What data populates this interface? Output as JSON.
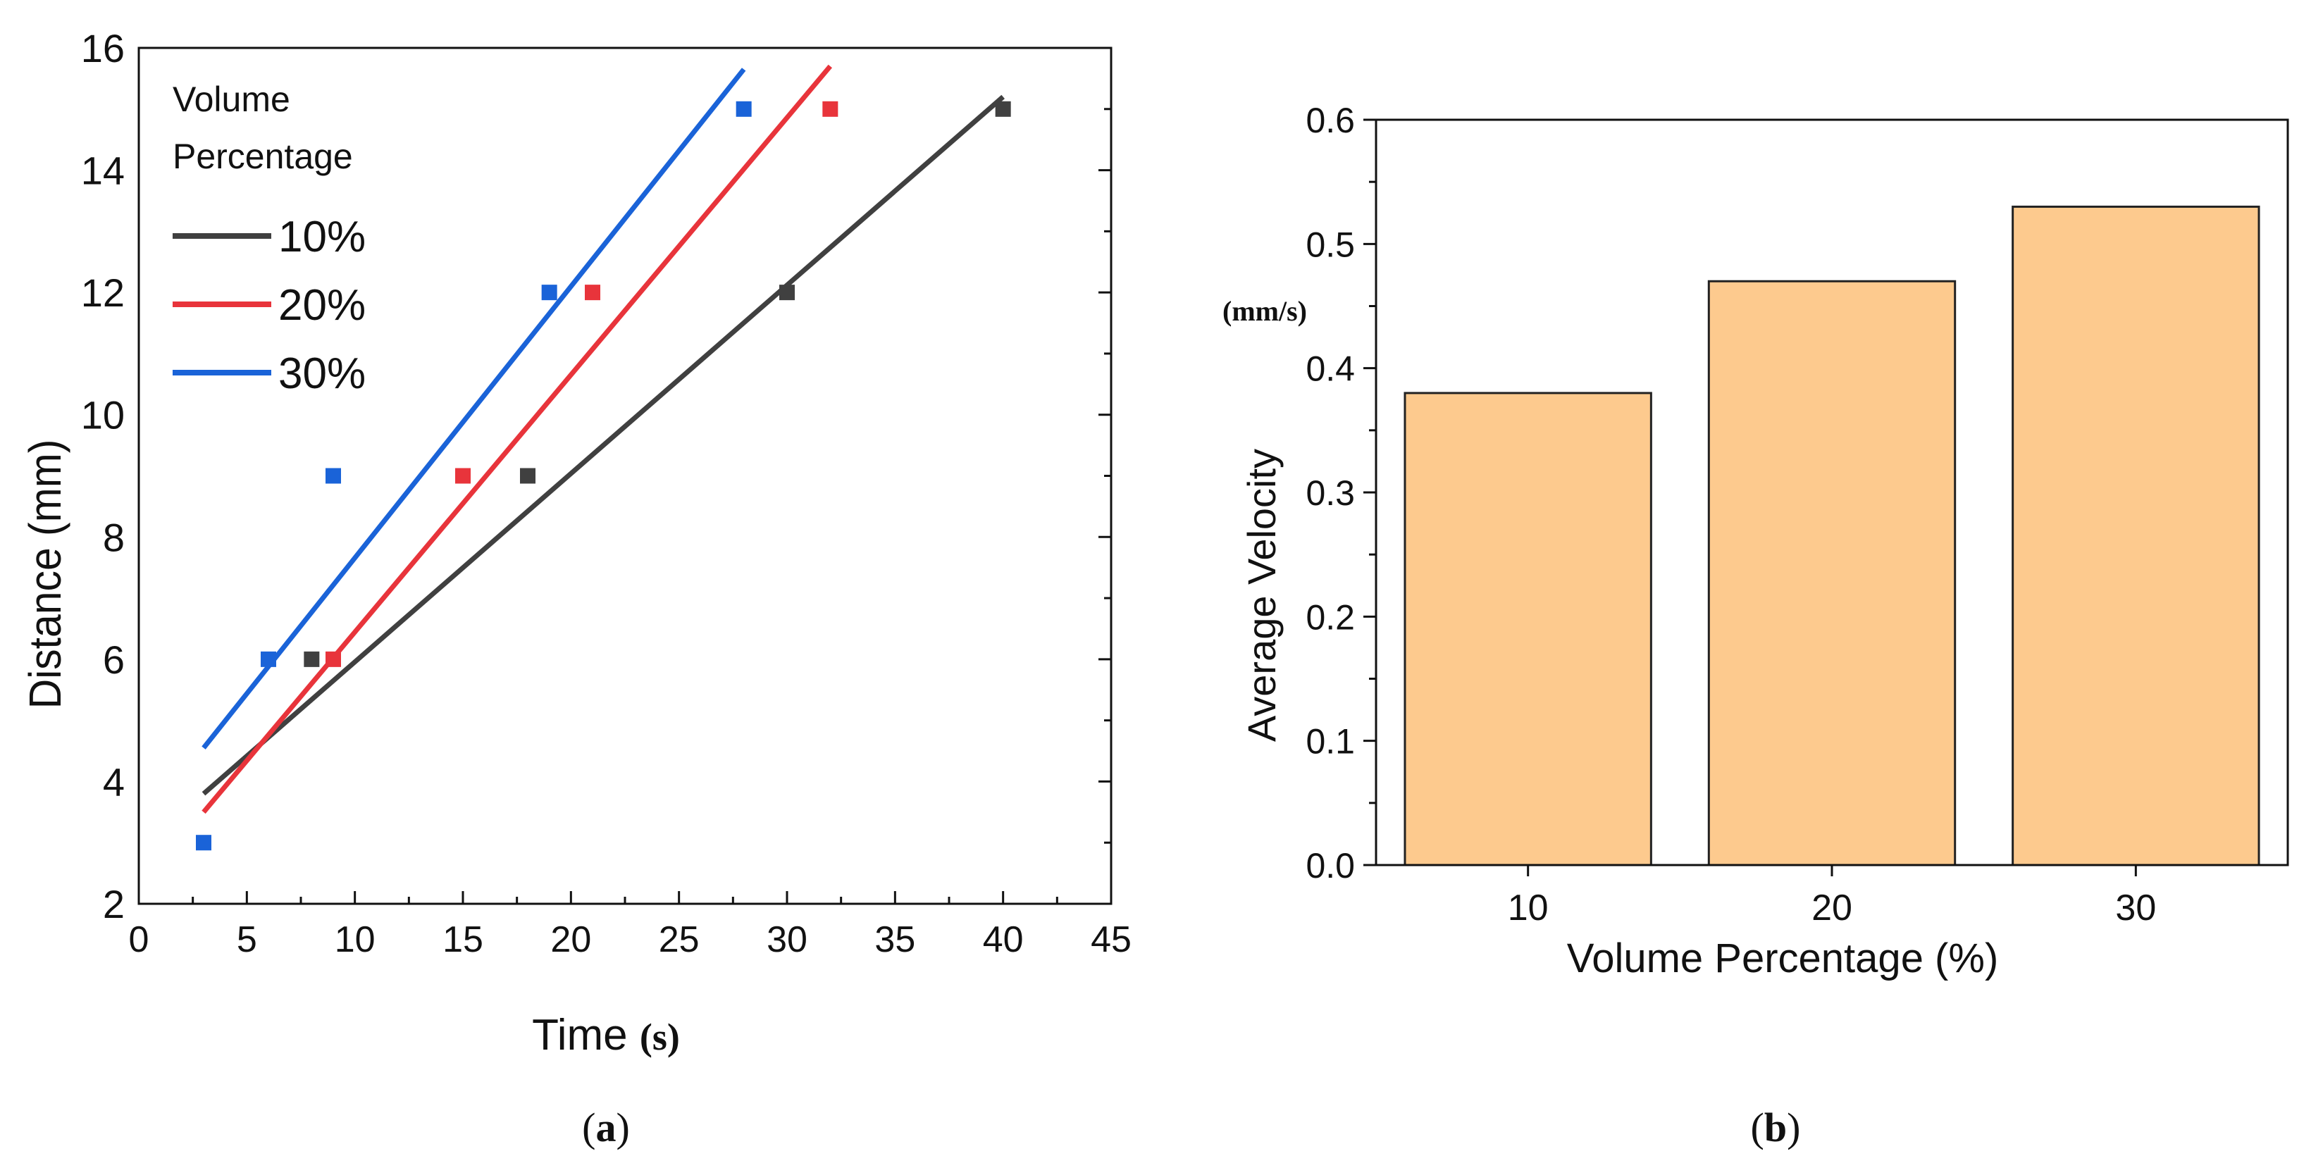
{
  "chart_data": [
    {
      "type": "scatter",
      "panel": "a",
      "caption_open": "(",
      "caption_letter": "a",
      "caption_close": ")",
      "xlabel": "Time",
      "xlabel_unit": "(s)",
      "ylabel": "Distance (mm)",
      "xlim": [
        0,
        45
      ],
      "ylim": [
        2,
        16
      ],
      "xticks": [
        "0",
        "5",
        "10",
        "15",
        "20",
        "25",
        "30",
        "35",
        "40",
        "45"
      ],
      "yticks": [
        "2",
        "4",
        "6",
        "8",
        "10",
        "12",
        "14",
        "16"
      ],
      "legend": {
        "title_line1": "Volume",
        "title_line2": "Percentage",
        "position": "top-left"
      },
      "series": [
        {
          "name": "10%",
          "color": "#404040",
          "points": [
            [
              8,
              6
            ],
            [
              18,
              9
            ],
            [
              30,
              12
            ],
            [
              40,
              15
            ]
          ],
          "fit": {
            "x": [
              3,
              40
            ],
            "y": [
              3.8,
              15.2
            ]
          }
        },
        {
          "name": "20%",
          "color": "#e8343b",
          "points": [
            [
              9,
              6
            ],
            [
              15,
              9
            ],
            [
              21,
              12
            ],
            [
              32,
              15
            ]
          ],
          "fit": {
            "x": [
              3,
              32
            ],
            "y": [
              3.5,
              15.7
            ]
          }
        },
        {
          "name": "30%",
          "color": "#1a63d8",
          "points": [
            [
              3,
              3
            ],
            [
              6,
              6
            ],
            [
              9,
              9
            ],
            [
              19,
              12
            ],
            [
              28,
              15
            ]
          ],
          "fit": {
            "x": [
              3,
              28
            ],
            "y": [
              4.55,
              15.65
            ]
          }
        }
      ]
    },
    {
      "type": "bar",
      "panel": "b",
      "caption_open": "(",
      "caption_letter": "b",
      "caption_close": ")",
      "categories": [
        "10",
        "20",
        "30"
      ],
      "values": [
        0.38,
        0.47,
        0.53
      ],
      "xlabel": "Volume Percentage (%)",
      "ylabel": "Average Velocity",
      "ylabel_unit": "(mm/s)",
      "ylim": [
        0,
        0.6
      ],
      "yticks": [
        "0.0",
        "0.1",
        "0.2",
        "0.3",
        "0.4",
        "0.5",
        "0.6"
      ],
      "bar_color": "#fdca8e"
    }
  ]
}
